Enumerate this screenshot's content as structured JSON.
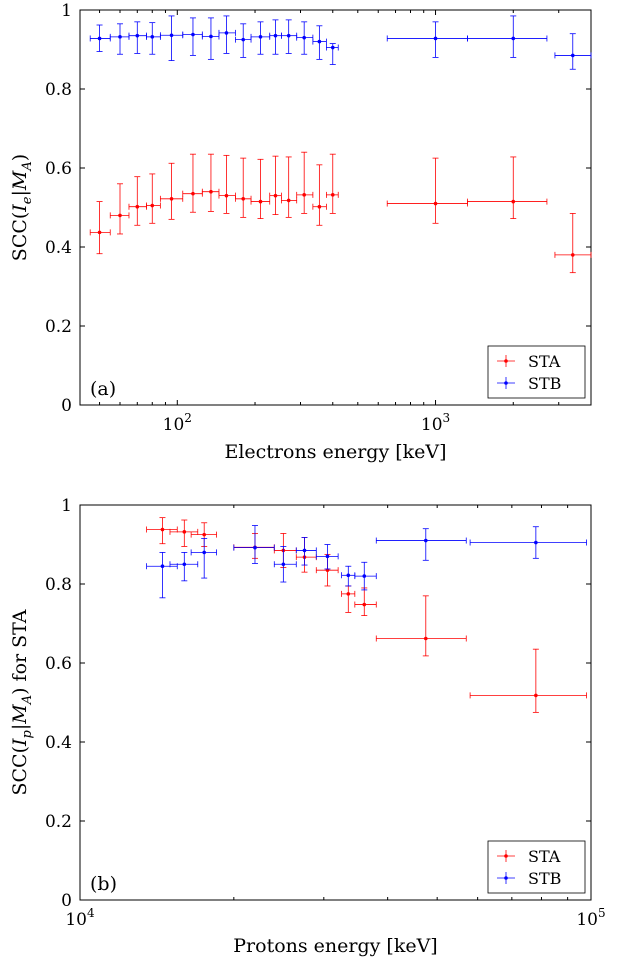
{
  "chart_data": [
    {
      "type": "scatter",
      "panel_label": "(a)",
      "xlabel": "Electrons energy [keV]",
      "ylabel": "SCC(I_e|M_A)",
      "ylabel_parts": {
        "lead": "SCC(",
        "var": "I",
        "sub": "e",
        "sep": "|",
        "var2": "M",
        "sub2": "A",
        "tail": ")"
      },
      "xscale": "log",
      "xlim": [
        42,
        4000
      ],
      "ylim": [
        0,
        1
      ],
      "xticks": [
        {
          "value": 100,
          "base": "10",
          "exp": "2"
        },
        {
          "value": 1000,
          "base": "10",
          "exp": "3"
        }
      ],
      "yticks": [
        0,
        0.2,
        0.4,
        0.6,
        0.8,
        1
      ],
      "ytick_labels": [
        "0",
        "0.2",
        "0.4",
        "0.6",
        "0.8",
        "1"
      ],
      "legend_position": "bottom-right",
      "series": [
        {
          "name": "STA",
          "color": "#ff0000",
          "points": [
            {
              "x": 50,
              "xerr": [
                46,
                55
              ],
              "y": 0.437,
              "ylo": 0.383,
              "yhi": 0.515
            },
            {
              "x": 60,
              "xerr": [
                55,
                65
              ],
              "y": 0.48,
              "ylo": 0.433,
              "yhi": 0.56
            },
            {
              "x": 70,
              "xerr": [
                65,
                76
              ],
              "y": 0.502,
              "ylo": 0.455,
              "yhi": 0.578
            },
            {
              "x": 80,
              "xerr": [
                76,
                86
              ],
              "y": 0.505,
              "ylo": 0.46,
              "yhi": 0.585
            },
            {
              "x": 95,
              "xerr": [
                86,
                105
              ],
              "y": 0.522,
              "ylo": 0.47,
              "yhi": 0.612
            },
            {
              "x": 115,
              "xerr": [
                105,
                125
              ],
              "y": 0.535,
              "ylo": 0.488,
              "yhi": 0.635
            },
            {
              "x": 135,
              "xerr": [
                125,
                145
              ],
              "y": 0.54,
              "ylo": 0.49,
              "yhi": 0.635
            },
            {
              "x": 155,
              "xerr": [
                145,
                168
              ],
              "y": 0.53,
              "ylo": 0.485,
              "yhi": 0.632
            },
            {
              "x": 180,
              "xerr": [
                168,
                193
              ],
              "y": 0.522,
              "ylo": 0.475,
              "yhi": 0.625
            },
            {
              "x": 210,
              "xerr": [
                193,
                228
              ],
              "y": 0.515,
              "ylo": 0.472,
              "yhi": 0.622
            },
            {
              "x": 240,
              "xerr": [
                228,
                253
              ],
              "y": 0.53,
              "ylo": 0.482,
              "yhi": 0.63
            },
            {
              "x": 270,
              "xerr": [
                253,
                290
              ],
              "y": 0.518,
              "ylo": 0.475,
              "yhi": 0.628
            },
            {
              "x": 310,
              "xerr": [
                290,
                335
              ],
              "y": 0.532,
              "ylo": 0.485,
              "yhi": 0.64
            },
            {
              "x": 355,
              "xerr": [
                335,
                378
              ],
              "y": 0.502,
              "ylo": 0.455,
              "yhi": 0.608
            },
            {
              "x": 400,
              "xerr": [
                378,
                420
              ],
              "y": 0.532,
              "ylo": 0.485,
              "yhi": 0.635
            },
            {
              "x": 1000,
              "xerr": [
                650,
                1330
              ],
              "y": 0.51,
              "ylo": 0.46,
              "yhi": 0.625
            },
            {
              "x": 2000,
              "xerr": [
                1330,
                2700
              ],
              "y": 0.515,
              "ylo": 0.472,
              "yhi": 0.628
            },
            {
              "x": 3400,
              "xerr": [
                2900,
                4000
              ],
              "y": 0.38,
              "ylo": 0.335,
              "yhi": 0.485
            }
          ]
        },
        {
          "name": "STB",
          "color": "#0000ff",
          "points": [
            {
              "x": 50,
              "xerr": [
                46,
                55
              ],
              "y": 0.928,
              "ylo": 0.895,
              "yhi": 0.962
            },
            {
              "x": 60,
              "xerr": [
                55,
                65
              ],
              "y": 0.932,
              "ylo": 0.888,
              "yhi": 0.965
            },
            {
              "x": 70,
              "xerr": [
                65,
                76
              ],
              "y": 0.935,
              "ylo": 0.89,
              "yhi": 0.97
            },
            {
              "x": 80,
              "xerr": [
                76,
                86
              ],
              "y": 0.932,
              "ylo": 0.888,
              "yhi": 0.968
            },
            {
              "x": 95,
              "xerr": [
                86,
                105
              ],
              "y": 0.936,
              "ylo": 0.872,
              "yhi": 0.985
            },
            {
              "x": 115,
              "xerr": [
                105,
                125
              ],
              "y": 0.938,
              "ylo": 0.885,
              "yhi": 0.98
            },
            {
              "x": 135,
              "xerr": [
                125,
                145
              ],
              "y": 0.933,
              "ylo": 0.875,
              "yhi": 0.98
            },
            {
              "x": 155,
              "xerr": [
                145,
                168
              ],
              "y": 0.942,
              "ylo": 0.89,
              "yhi": 0.985
            },
            {
              "x": 180,
              "xerr": [
                168,
                193
              ],
              "y": 0.925,
              "ylo": 0.88,
              "yhi": 0.965
            },
            {
              "x": 210,
              "xerr": [
                193,
                228
              ],
              "y": 0.932,
              "ylo": 0.888,
              "yhi": 0.97
            },
            {
              "x": 240,
              "xerr": [
                228,
                253
              ],
              "y": 0.935,
              "ylo": 0.888,
              "yhi": 0.975
            },
            {
              "x": 270,
              "xerr": [
                253,
                290
              ],
              "y": 0.935,
              "ylo": 0.89,
              "yhi": 0.975
            },
            {
              "x": 310,
              "xerr": [
                290,
                335
              ],
              "y": 0.93,
              "ylo": 0.888,
              "yhi": 0.97
            },
            {
              "x": 355,
              "xerr": [
                335,
                378
              ],
              "y": 0.92,
              "ylo": 0.875,
              "yhi": 0.96
            },
            {
              "x": 400,
              "xerr": [
                378,
                420
              ],
              "y": 0.905,
              "ylo": 0.862,
              "yhi": 0.915
            },
            {
              "x": 1000,
              "xerr": [
                650,
                1330
              ],
              "y": 0.928,
              "ylo": 0.88,
              "yhi": 0.97
            },
            {
              "x": 2000,
              "xerr": [
                1330,
                2700
              ],
              "y": 0.928,
              "ylo": 0.88,
              "yhi": 0.985
            },
            {
              "x": 3400,
              "xerr": [
                2900,
                4000
              ],
              "y": 0.885,
              "ylo": 0.85,
              "yhi": 0.94
            }
          ]
        }
      ]
    },
    {
      "type": "scatter",
      "panel_label": "(b)",
      "xlabel": "Protons energy [keV]",
      "ylabel": "SCC(I_p|M_A) for STA",
      "ylabel_parts": {
        "lead": "SCC(",
        "var": "I",
        "sub": "p",
        "sep": "|",
        "var2": "M",
        "sub2": "A",
        "tail": ") for STA"
      },
      "xscale": "log",
      "xlim": [
        10000,
        100000
      ],
      "ylim": [
        0,
        1
      ],
      "xticks": [
        {
          "value": 10000,
          "base": "10",
          "exp": "4"
        },
        {
          "value": 100000,
          "base": "10",
          "exp": "5"
        }
      ],
      "yticks": [
        0,
        0.2,
        0.4,
        0.6,
        0.8,
        1
      ],
      "ytick_labels": [
        "0",
        "0.2",
        "0.4",
        "0.6",
        "0.8",
        "1"
      ],
      "legend_position": "bottom-right",
      "series": [
        {
          "name": "STA",
          "color": "#ff0000",
          "points": [
            {
              "x": 14500,
              "xerr": [
                13500,
                15500
              ],
              "y": 0.938,
              "ylo": 0.902,
              "yhi": 0.968
            },
            {
              "x": 16000,
              "xerr": [
                15000,
                17000
              ],
              "y": 0.932,
              "ylo": 0.895,
              "yhi": 0.962
            },
            {
              "x": 17500,
              "xerr": [
                16500,
                18500
              ],
              "y": 0.925,
              "ylo": 0.895,
              "yhi": 0.955
            },
            {
              "x": 22000,
              "xerr": [
                20000,
                24000
              ],
              "y": 0.893,
              "ylo": 0.865,
              "yhi": 0.928
            },
            {
              "x": 25000,
              "xerr": [
                24000,
                26500
              ],
              "y": 0.885,
              "ylo": 0.842,
              "yhi": 0.928
            },
            {
              "x": 27500,
              "xerr": [
                26500,
                29000
              ],
              "y": 0.868,
              "ylo": 0.83,
              "yhi": 0.918
            },
            {
              "x": 30500,
              "xerr": [
                29000,
                32000
              ],
              "y": 0.835,
              "ylo": 0.795,
              "yhi": 0.875
            },
            {
              "x": 33500,
              "xerr": [
                32500,
                34500
              ],
              "y": 0.775,
              "ylo": 0.728,
              "yhi": 0.795
            },
            {
              "x": 36000,
              "xerr": [
                34500,
                38000
              ],
              "y": 0.748,
              "ylo": 0.72,
              "yhi": 0.79
            },
            {
              "x": 47500,
              "xerr": [
                38000,
                57000
              ],
              "y": 0.662,
              "ylo": 0.618,
              "yhi": 0.77
            },
            {
              "x": 78000,
              "xerr": [
                58000,
                98000
              ],
              "y": 0.518,
              "ylo": 0.475,
              "yhi": 0.635
            }
          ]
        },
        {
          "name": "STB",
          "color": "#0000ff",
          "points": [
            {
              "x": 14500,
              "xerr": [
                13500,
                15500
              ],
              "y": 0.845,
              "ylo": 0.765,
              "yhi": 0.88
            },
            {
              "x": 16000,
              "xerr": [
                15000,
                17000
              ],
              "y": 0.85,
              "ylo": 0.808,
              "yhi": 0.88
            },
            {
              "x": 17500,
              "xerr": [
                16500,
                18500
              ],
              "y": 0.88,
              "ylo": 0.815,
              "yhi": 0.915
            },
            {
              "x": 22000,
              "xerr": [
                20000,
                24000
              ],
              "y": 0.892,
              "ylo": 0.852,
              "yhi": 0.948
            },
            {
              "x": 25000,
              "xerr": [
                24000,
                26500
              ],
              "y": 0.85,
              "ylo": 0.805,
              "yhi": 0.895
            },
            {
              "x": 27500,
              "xerr": [
                26500,
                29000
              ],
              "y": 0.885,
              "ylo": 0.848,
              "yhi": 0.918
            },
            {
              "x": 30500,
              "xerr": [
                29000,
                32000
              ],
              "y": 0.87,
              "ylo": 0.838,
              "yhi": 0.9
            },
            {
              "x": 33500,
              "xerr": [
                32500,
                34500
              ],
              "y": 0.822,
              "ylo": 0.795,
              "yhi": 0.845
            },
            {
              "x": 36000,
              "xerr": [
                34500,
                38000
              ],
              "y": 0.82,
              "ylo": 0.785,
              "yhi": 0.855
            },
            {
              "x": 47500,
              "xerr": [
                38000,
                57000
              ],
              "y": 0.91,
              "ylo": 0.86,
              "yhi": 0.94
            },
            {
              "x": 78000,
              "xerr": [
                58000,
                98000
              ],
              "y": 0.905,
              "ylo": 0.865,
              "yhi": 0.945
            }
          ]
        }
      ]
    }
  ]
}
